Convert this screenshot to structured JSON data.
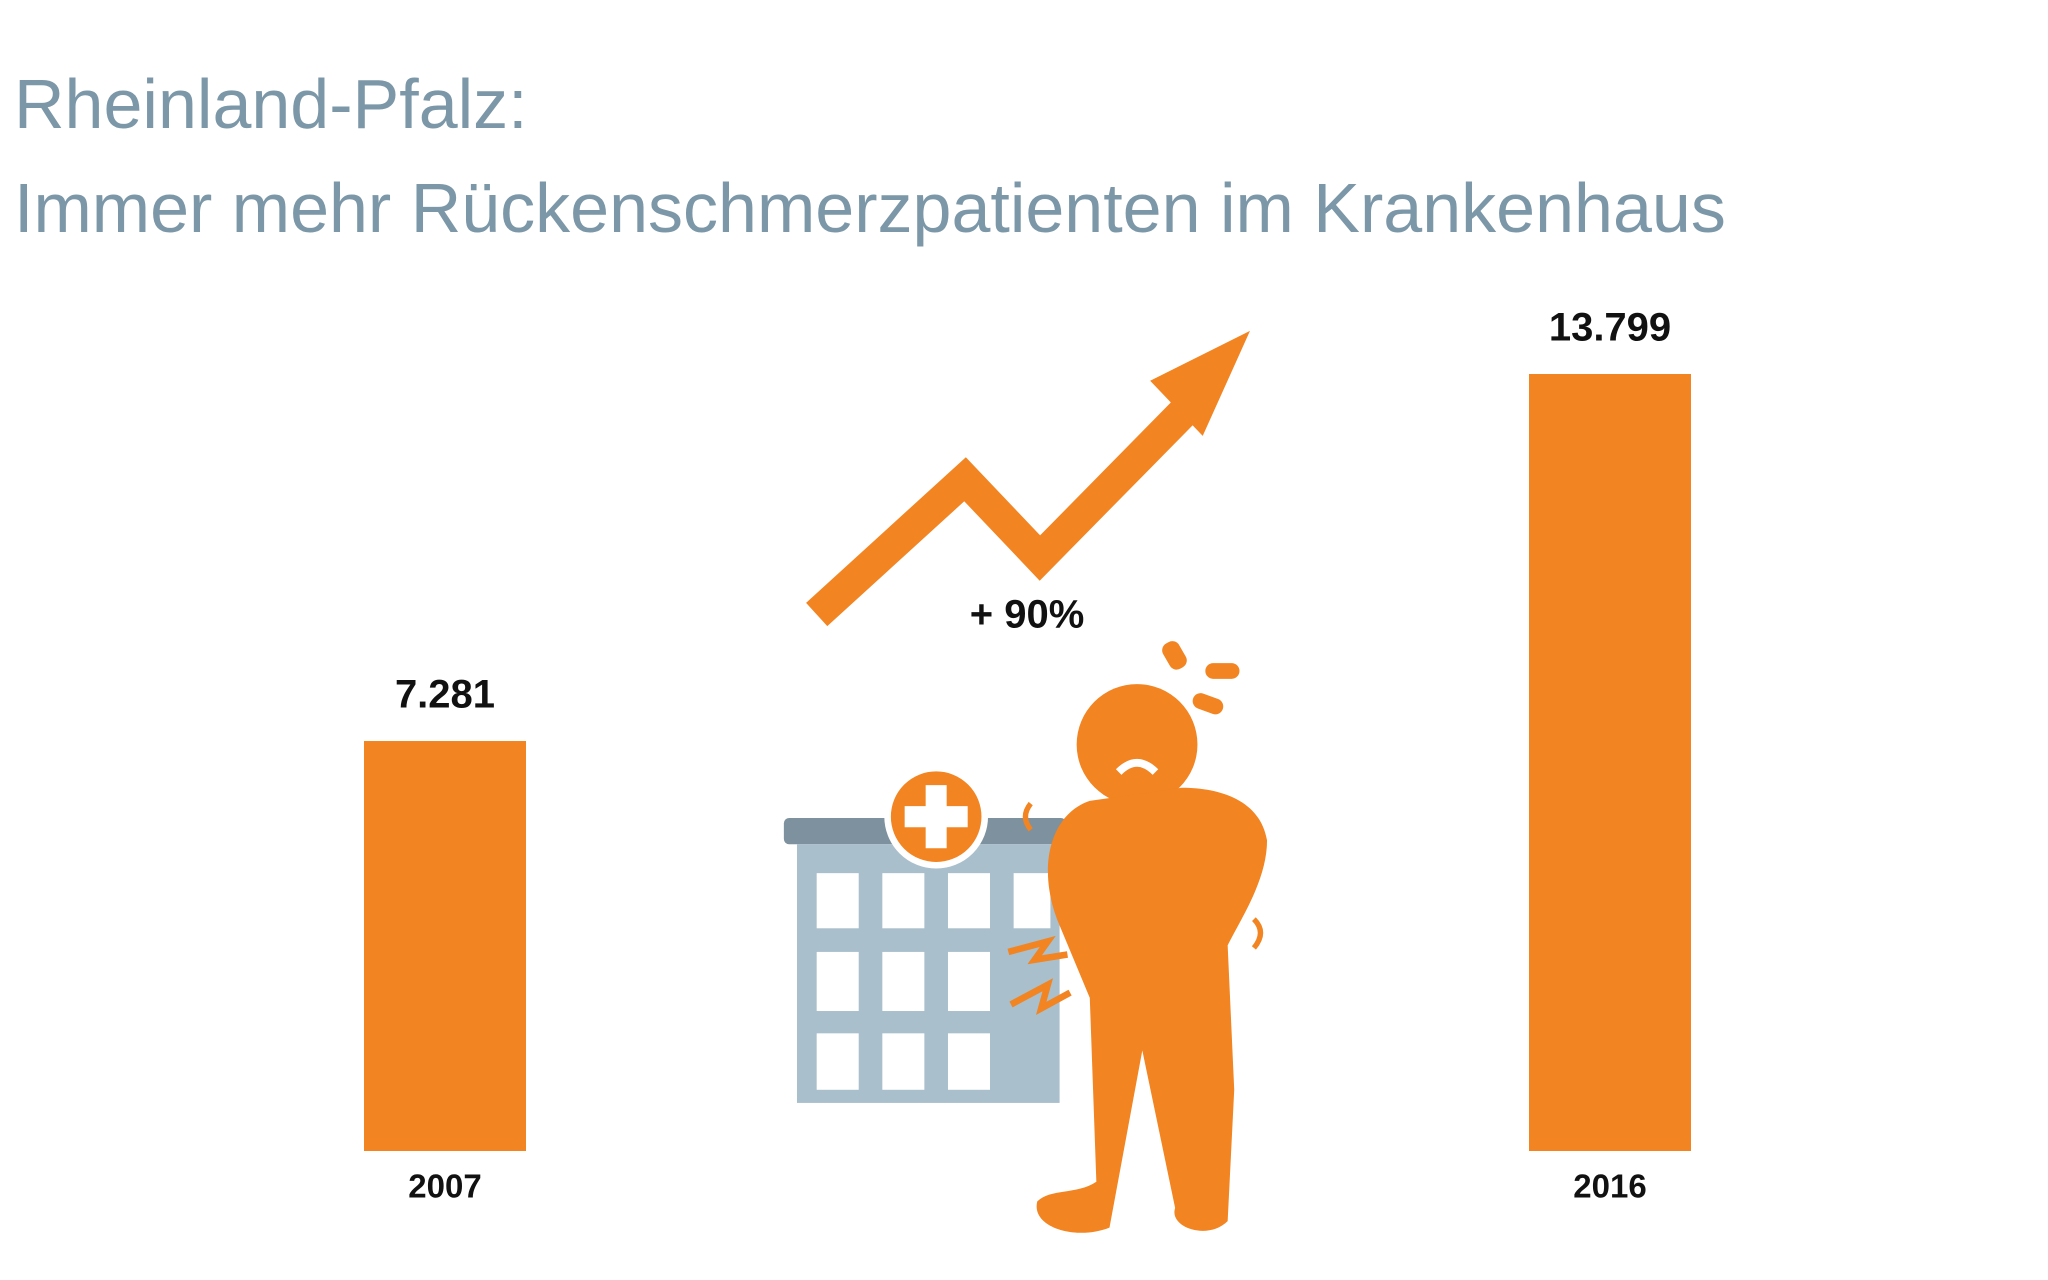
{
  "chart_data": {
    "type": "bar",
    "title": "Rheinland-Pfalz:",
    "subtitle": "Immer mehr Rückenschmerzpatienten im Krankenhaus",
    "categories": [
      "2007",
      "2016"
    ],
    "values": [
      7281,
      13799
    ],
    "value_labels": [
      "7.281",
      "13.799"
    ],
    "color": "#f28421",
    "annotation": "+ 90%"
  }
}
